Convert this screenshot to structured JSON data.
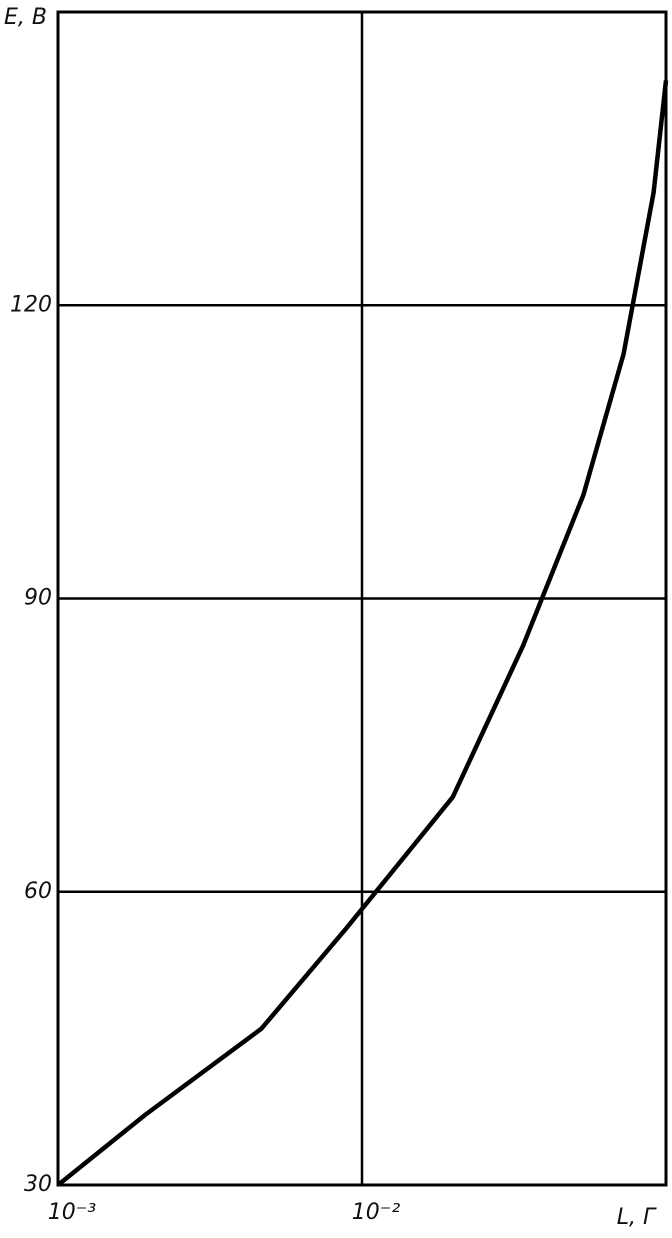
{
  "chart_data": {
    "type": "line",
    "x_label": "L, Г",
    "y_label": "E, В",
    "x": [
      0.001,
      0.00194,
      0.00467,
      0.0089,
      0.0199,
      0.0339,
      0.0535,
      0.0725,
      0.091,
      0.1
    ],
    "series": [
      {
        "color": "#000000",
        "values": [
          30,
          37.2,
          46,
          56.3,
          69.7,
          85.2,
          100.6,
          115,
          131.5,
          143
        ]
      }
    ],
    "xlim": [
      0.001,
      0.1
    ],
    "ylim": [
      30,
      150
    ],
    "xscale": "log",
    "xticks": [
      {
        "value": 0.001,
        "label": "10⁻³"
      },
      {
        "value": 0.01,
        "label": "10⁻²"
      }
    ],
    "yticks": [
      30,
      60,
      90,
      120
    ],
    "grid": true
  }
}
